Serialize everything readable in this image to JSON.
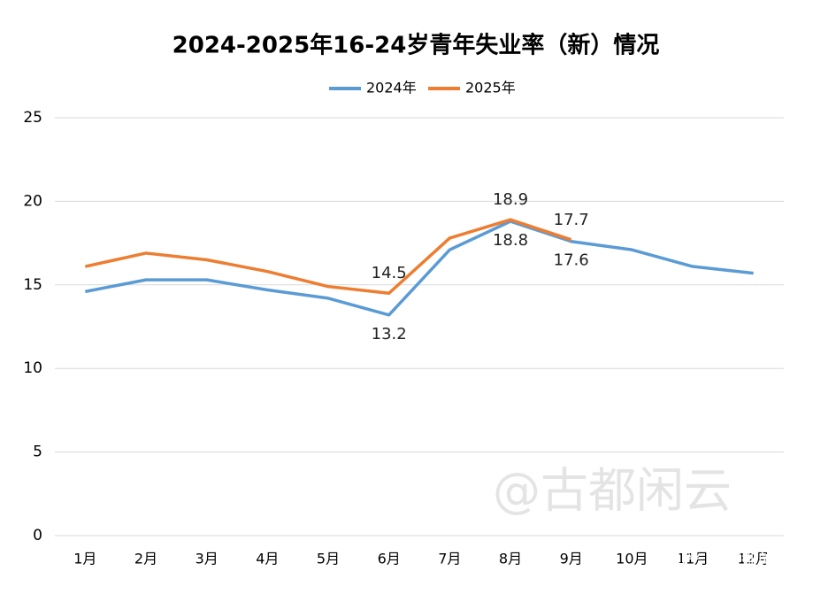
{
  "chart_data": {
    "type": "line",
    "title": "2024-2025年16-24岁青年失业率（新）情况",
    "categories": [
      "1月",
      "2月",
      "3月",
      "4月",
      "5月",
      "6月",
      "7月",
      "8月",
      "9月",
      "10月",
      "11月",
      "12月"
    ],
    "series": [
      {
        "name": "2024年",
        "color": "#5b9bd5",
        "values": [
          14.6,
          15.3,
          15.3,
          14.7,
          14.2,
          13.2,
          17.1,
          18.8,
          17.6,
          17.1,
          16.1,
          15.7
        ],
        "labels_at": [
          5,
          7,
          8
        ],
        "label_side": "below"
      },
      {
        "name": "2025年",
        "color": "#ed7d31",
        "values": [
          16.1,
          16.9,
          16.5,
          15.8,
          14.9,
          14.5,
          17.8,
          18.9,
          17.7,
          null,
          null,
          null
        ],
        "labels_at": [
          5,
          7,
          8
        ],
        "label_side": "above"
      }
    ],
    "ylim": [
      0,
      25
    ],
    "yticks": [
      0,
      5,
      10,
      15,
      20,
      25
    ],
    "grid": true,
    "legend": "top",
    "watermarks": [
      "@古都闲云",
      "知乎 @古都闲云"
    ]
  }
}
